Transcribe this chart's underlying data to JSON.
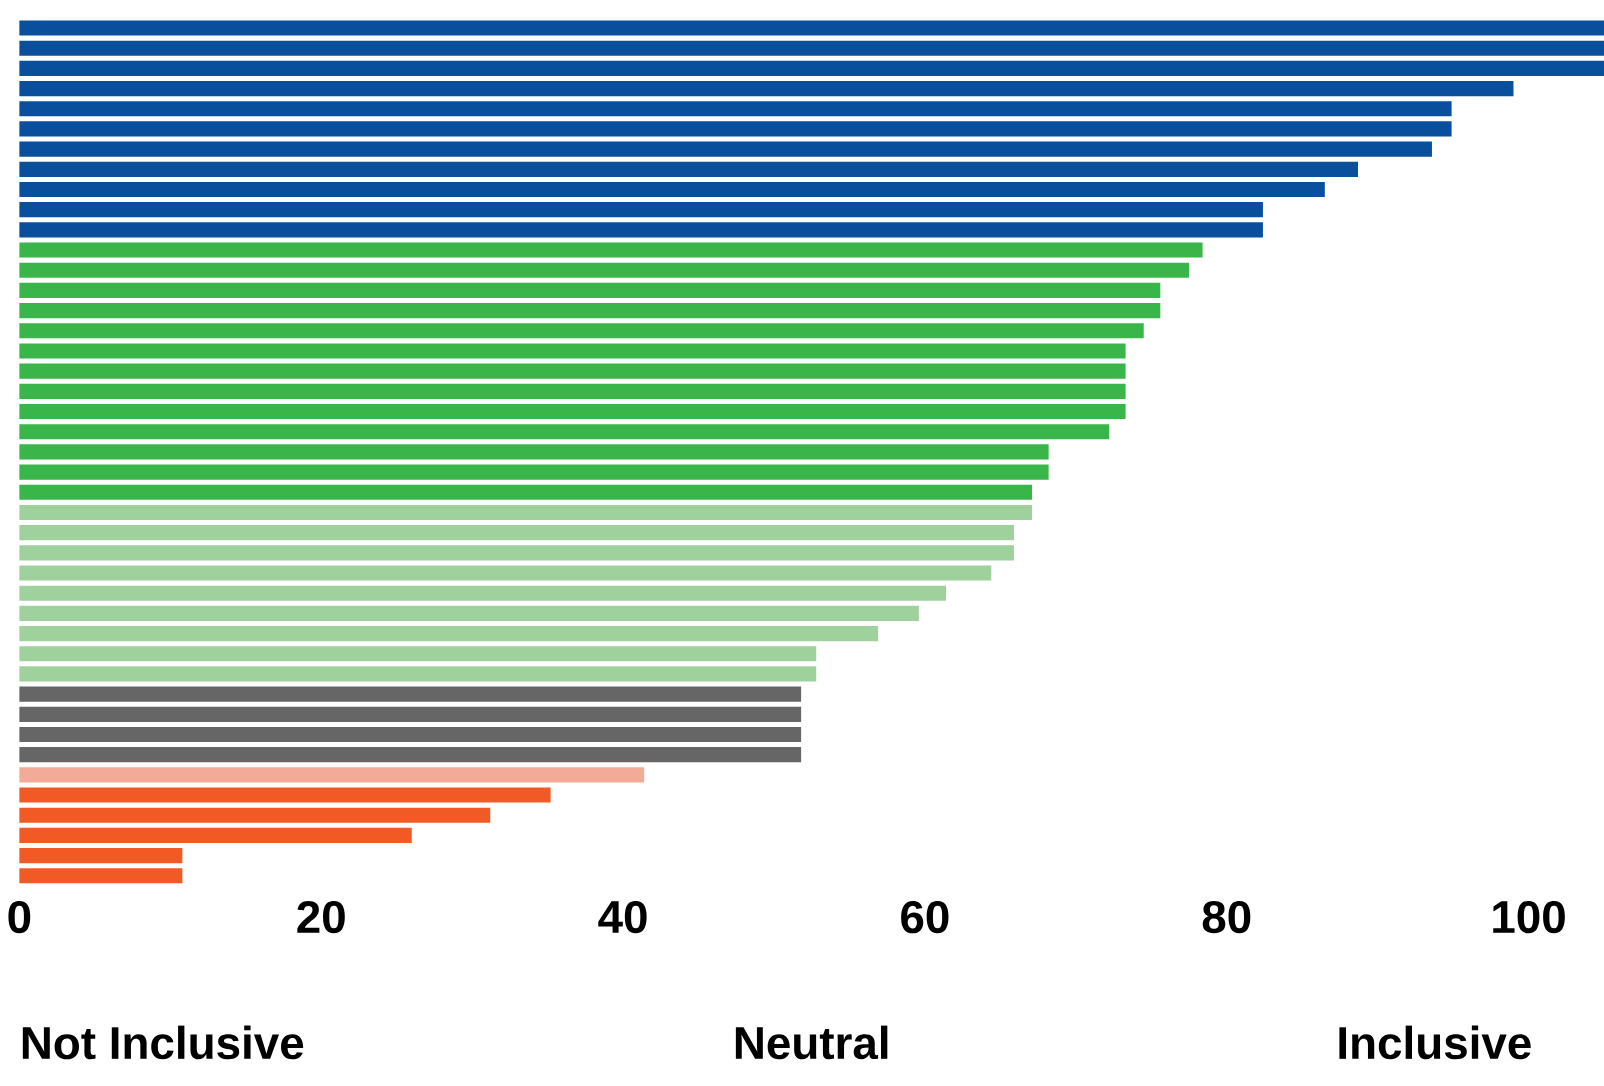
{
  "chart_data": {
    "type": "bar",
    "orientation": "horizontal",
    "categories": [
      null,
      null,
      null,
      null,
      null,
      null,
      null,
      null,
      null,
      null,
      null,
      null,
      null,
      null,
      null,
      null,
      null,
      null,
      null,
      null,
      null,
      null,
      null,
      null,
      null,
      null,
      null,
      null,
      null,
      null,
      null,
      null,
      null,
      null,
      null,
      null,
      null,
      null,
      null,
      null,
      null,
      null,
      null
    ],
    "values": [
      105,
      105,
      105,
      99.0,
      94.9,
      94.9,
      93.6,
      88.7,
      86.5,
      82.4,
      82.4,
      78.4,
      77.5,
      75.6,
      75.6,
      74.5,
      73.3,
      73.3,
      73.3,
      73.3,
      72.2,
      68.2,
      68.2,
      67.1,
      67.1,
      65.9,
      65.9,
      64.4,
      61.4,
      59.6,
      56.9,
      52.8,
      52.8,
      51.8,
      51.8,
      51.8,
      51.8,
      41.4,
      35.2,
      31.2,
      26.0,
      10.8,
      10.8
    ],
    "colors": [
      "#0a4f9c",
      "#0a4f9c",
      "#0a4f9c",
      "#0a4f9c",
      "#0a4f9c",
      "#0a4f9c",
      "#0a4f9c",
      "#0a4f9c",
      "#0a4f9c",
      "#0a4f9c",
      "#0a4f9c",
      "#39b54a",
      "#39b54a",
      "#39b54a",
      "#39b54a",
      "#39b54a",
      "#39b54a",
      "#39b54a",
      "#39b54a",
      "#39b54a",
      "#39b54a",
      "#39b54a",
      "#39b54a",
      "#39b54a",
      "#9fd19c",
      "#9fd19c",
      "#9fd19c",
      "#9fd19c",
      "#9fd19c",
      "#9fd19c",
      "#9fd19c",
      "#9fd19c",
      "#9fd19c",
      "#666666",
      "#666666",
      "#666666",
      "#666666",
      "#f2ab97",
      "#f15a24",
      "#f15a24",
      "#f15a24",
      "#f15a24",
      "#f15a24"
    ],
    "xlim": [
      0,
      105
    ],
    "xticks": [
      0,
      20,
      40,
      60,
      80,
      100
    ],
    "annotations": [
      "Not Inclusive",
      "Neutral",
      "Inclusive"
    ]
  }
}
